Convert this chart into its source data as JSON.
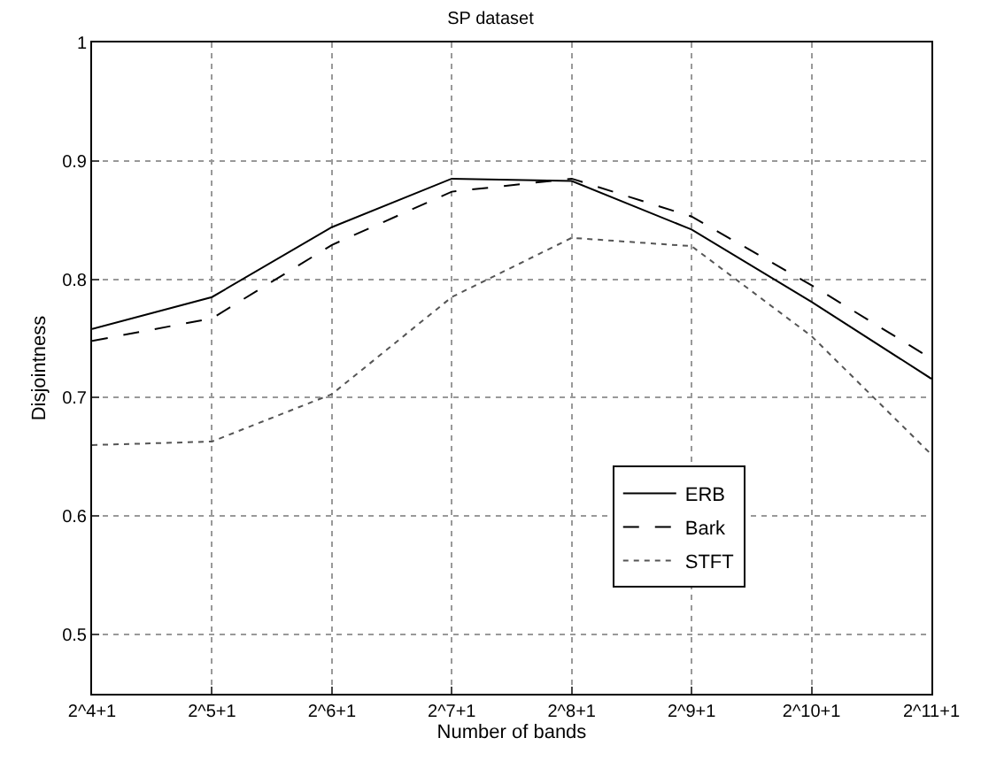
{
  "chart_data": {
    "type": "line",
    "title": "SP dataset",
    "xlabel": "Number of bands",
    "ylabel": "Disjointness",
    "categories": [
      "2^4+1",
      "2^5+1",
      "2^6+1",
      "2^7+1",
      "2^8+1",
      "2^9+1",
      "2^10+1",
      "2^11+1"
    ],
    "series": [
      {
        "name": "ERB",
        "color": "#000000",
        "line_style": "solid",
        "values": [
          0.758,
          0.785,
          0.844,
          0.885,
          0.883,
          0.842,
          0.781,
          0.716
        ]
      },
      {
        "name": "Bark",
        "color": "#000000",
        "line_style": "dashed",
        "values": [
          0.748,
          0.767,
          0.829,
          0.874,
          0.885,
          0.853,
          0.795,
          0.733
        ]
      },
      {
        "name": "STFT",
        "color": "#555555",
        "line_style": "dotted",
        "values": [
          0.66,
          0.663,
          0.703,
          0.785,
          0.835,
          0.828,
          0.752,
          0.652
        ]
      }
    ],
    "ylim": [
      0.45,
      1
    ],
    "yticks": [
      0.5,
      0.6,
      0.7,
      0.8,
      0.9,
      1
    ],
    "grid": true,
    "legend": "bottom right",
    "marker": "none"
  }
}
